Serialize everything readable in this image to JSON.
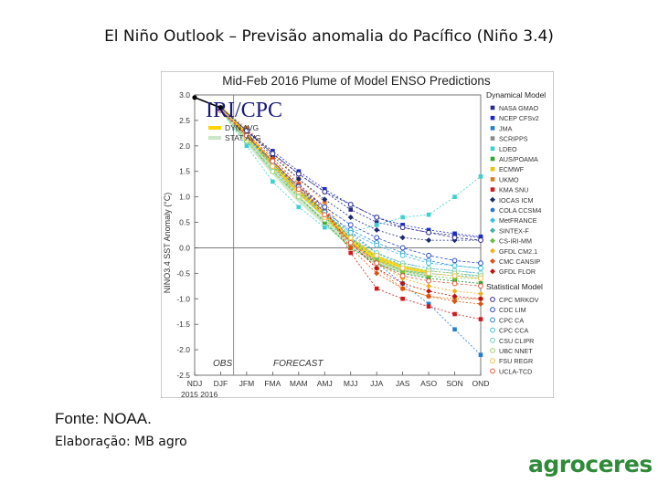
{
  "slide": {
    "title": "El Niño Outlook – Previsão anomalia do Pacífico (Niño 3.4)",
    "source": "Fonte: NOAA.",
    "credit": "Elaboração: MB agro",
    "brand": "agroceres"
  },
  "chart_data": {
    "type": "line",
    "title": "Mid-Feb 2016 Plume of Model ENSO Predictions",
    "watermark": "IRI/CPC",
    "ylabel": "NINO3.4 SST Anomaly (°C)",
    "xlabel": "",
    "year_label": "2015  2016",
    "categories": [
      "NDJ",
      "DJF",
      "JFM",
      "FMA",
      "MAM",
      "AMJ",
      "MJJ",
      "JJA",
      "JAS",
      "ASO",
      "SON",
      "OND"
    ],
    "ylim": [
      -2.5,
      3.0
    ],
    "yticks": [
      -2.5,
      -2.0,
      -1.5,
      -1.0,
      -0.5,
      0.0,
      0.5,
      1.0,
      1.5,
      2.0,
      2.5,
      3.0
    ],
    "ytick_labels": [
      "-2.5",
      "-2.0",
      "-1.5",
      "-1.0",
      "-0.5",
      "0.0",
      "0.5",
      "1.0",
      "1.5",
      "2.0",
      "2.5",
      "3.0"
    ],
    "obs_label": "OBS",
    "forecast_label": "FORECAST",
    "observed": [
      2.95,
      2.75
    ],
    "averages": [
      {
        "name": "DYN AVG",
        "color": "#ffd400",
        "values": [
          null,
          2.75,
          2.2,
          1.65,
          1.1,
          0.65,
          0.15,
          -0.2,
          -0.4,
          -0.5,
          null,
          null
        ]
      },
      {
        "name": "STAT AVG",
        "color": "#c9e6c9",
        "values": [
          null,
          2.75,
          2.1,
          1.5,
          0.95,
          0.5,
          0.05,
          -0.3,
          -0.45,
          -0.55,
          null,
          null
        ]
      }
    ],
    "legend_dynamical_title": "Dynamical Model",
    "legend_statistical_title": "Statistical Model",
    "series": [
      {
        "name": "NASA GMAO",
        "group": "dyn",
        "color": "#2a2a8a",
        "marker": "square",
        "values": [
          null,
          2.75,
          2.3,
          1.85,
          1.45,
          1.1,
          0.75,
          0.5,
          0.4,
          0.3,
          0.25,
          0.2
        ]
      },
      {
        "name": "NCEP CFSv2",
        "group": "dyn",
        "color": "#1a2ad0",
        "marker": "square",
        "values": [
          null,
          2.75,
          2.3,
          1.9,
          1.5,
          1.15,
          0.85,
          0.6,
          0.45,
          0.35,
          0.28,
          0.22
        ]
      },
      {
        "name": "JMA",
        "group": "dyn",
        "color": "#1e7fd8",
        "marker": "square",
        "values": [
          null,
          2.7,
          2.2,
          1.7,
          1.2,
          0.7,
          0.2,
          -0.3,
          -0.7,
          -1.1,
          -1.6,
          -2.1
        ]
      },
      {
        "name": "SCRIPPS",
        "group": "dyn",
        "color": "#8a8a8a",
        "marker": "square",
        "values": [
          null,
          2.7,
          2.2,
          1.6,
          1.0,
          0.5,
          0.0,
          -0.3,
          -0.5,
          -0.6,
          -0.65,
          -0.7
        ]
      },
      {
        "name": "LDEO",
        "group": "dyn",
        "color": "#3ad0d0",
        "marker": "square",
        "values": [
          null,
          2.7,
          2.0,
          1.3,
          0.8,
          0.4,
          0.3,
          0.45,
          0.6,
          0.65,
          1.0,
          1.4
        ]
      },
      {
        "name": "AUS/POAMA",
        "group": "dyn",
        "color": "#2fa82f",
        "marker": "square",
        "values": [
          null,
          2.7,
          2.1,
          1.5,
          1.0,
          0.5,
          0.0,
          -0.3,
          -0.5,
          -0.6,
          -0.65,
          -0.7
        ]
      },
      {
        "name": "ECMWF",
        "group": "dyn",
        "color": "#f2c000",
        "marker": "square",
        "values": [
          null,
          2.75,
          2.2,
          1.7,
          1.2,
          0.7,
          0.1,
          -0.25,
          -0.45,
          -0.5,
          -0.55,
          -0.6
        ]
      },
      {
        "name": "UKMO",
        "group": "dyn",
        "color": "#e07a1a",
        "marker": "square",
        "values": [
          null,
          2.75,
          2.35,
          1.85,
          1.35,
          0.9,
          0.1,
          -0.4,
          -0.8,
          -0.95,
          -1.0,
          -1.0
        ]
      },
      {
        "name": "KMA SNU",
        "group": "dyn",
        "color": "#d01a1a",
        "marker": "square",
        "values": [
          null,
          2.7,
          2.25,
          1.75,
          1.25,
          0.8,
          -0.1,
          -0.8,
          -1.0,
          -1.15,
          -1.3,
          -1.4
        ]
      },
      {
        "name": "IOCAS ICM",
        "group": "dyn",
        "color": "#1a2a70",
        "marker": "diamond",
        "values": [
          null,
          2.75,
          2.3,
          1.8,
          1.35,
          0.95,
          0.6,
          0.35,
          0.2,
          0.15,
          0.15,
          0.15
        ]
      },
      {
        "name": "COLA CCSM4",
        "group": "dyn",
        "color": "#2a7acc",
        "marker": "circle",
        "values": [
          null,
          2.7,
          2.2,
          1.7,
          1.2,
          0.75,
          0.3,
          -0.1,
          -0.3,
          -0.4,
          -0.45,
          -0.5
        ]
      },
      {
        "name": "MetFRANCE",
        "group": "dyn",
        "color": "#3ac0e0",
        "marker": "diamond",
        "values": [
          null,
          2.7,
          2.2,
          1.6,
          1.1,
          0.6,
          0.2,
          -0.2,
          -0.45,
          -0.5,
          -0.55,
          -0.55
        ]
      },
      {
        "name": "SINTEX-F",
        "group": "dyn",
        "color": "#40b0b0",
        "marker": "diamond",
        "values": [
          null,
          2.7,
          2.2,
          1.65,
          1.15,
          0.7,
          0.25,
          -0.1,
          -0.35,
          -0.45,
          -0.5,
          -0.55
        ]
      },
      {
        "name": "CS-IRI-MM",
        "group": "dyn",
        "color": "#6ac040",
        "marker": "diamond",
        "values": [
          null,
          2.7,
          2.15,
          1.6,
          1.1,
          0.6,
          0.1,
          -0.25,
          -0.45,
          -0.55,
          -0.6,
          -0.6
        ]
      },
      {
        "name": "GFDL CM2.1",
        "group": "dyn",
        "color": "#f0b020",
        "marker": "diamond",
        "values": [
          null,
          2.7,
          2.2,
          1.7,
          1.2,
          0.7,
          0.15,
          -0.3,
          -0.6,
          -0.75,
          -0.85,
          -0.9
        ]
      },
      {
        "name": "CMC CANSIP",
        "group": "dyn",
        "color": "#e05010",
        "marker": "diamond",
        "values": [
          null,
          2.7,
          2.25,
          1.75,
          1.25,
          0.75,
          0.0,
          -0.5,
          -0.8,
          -0.95,
          -1.05,
          -1.1
        ]
      },
      {
        "name": "GFDL FLOR",
        "group": "dyn",
        "color": "#c01010",
        "marker": "diamond",
        "values": [
          null,
          2.7,
          2.2,
          1.7,
          1.2,
          0.7,
          0.1,
          -0.4,
          -0.7,
          -0.85,
          -0.95,
          -1.0
        ]
      },
      {
        "name": "CPC MRKOV",
        "group": "stat",
        "color": "#2a2a8a",
        "marker": "ocircle",
        "values": [
          null,
          2.75,
          2.3,
          1.85,
          1.45,
          1.1,
          0.85,
          0.6,
          0.4,
          0.3,
          0.2,
          0.15
        ]
      },
      {
        "name": "CDC LIM",
        "group": "stat",
        "color": "#2a4acc",
        "marker": "ocircle",
        "values": [
          null,
          2.7,
          2.2,
          1.7,
          1.2,
          0.8,
          0.45,
          0.2,
          0.0,
          -0.15,
          -0.25,
          -0.3
        ]
      },
      {
        "name": "CPC CA",
        "group": "stat",
        "color": "#2a8ad8",
        "marker": "ocircle",
        "values": [
          null,
          2.7,
          2.2,
          1.65,
          1.15,
          0.7,
          0.35,
          0.1,
          -0.1,
          -0.25,
          -0.35,
          -0.4
        ]
      },
      {
        "name": "CPC CCA",
        "group": "stat",
        "color": "#40c0e0",
        "marker": "ocircle",
        "values": [
          null,
          2.7,
          2.15,
          1.6,
          1.1,
          0.65,
          0.3,
          0.05,
          -0.15,
          -0.3,
          -0.35,
          -0.4
        ]
      },
      {
        "name": "CSU CLIPR",
        "group": "stat",
        "color": "#70d0c0",
        "marker": "ocircle",
        "values": [
          null,
          2.7,
          2.1,
          1.55,
          1.05,
          0.6,
          0.2,
          -0.1,
          -0.3,
          -0.4,
          -0.45,
          -0.5
        ]
      },
      {
        "name": "UBC NNET",
        "group": "stat",
        "color": "#a0d070",
        "marker": "ocircle",
        "values": [
          null,
          2.7,
          2.1,
          1.5,
          1.0,
          0.55,
          0.15,
          -0.15,
          -0.35,
          -0.45,
          -0.5,
          -0.55
        ]
      },
      {
        "name": "FSU REGR",
        "group": "stat",
        "color": "#f0c050",
        "marker": "ocircle",
        "values": [
          null,
          2.7,
          2.15,
          1.6,
          1.1,
          0.6,
          0.2,
          -0.15,
          -0.4,
          -0.5,
          -0.55,
          -0.6
        ]
      },
      {
        "name": "UCLA-TCD",
        "group": "stat",
        "color": "#e06040",
        "marker": "ocircle",
        "values": [
          null,
          2.7,
          2.2,
          1.7,
          1.15,
          0.65,
          0.1,
          -0.3,
          -0.55,
          -0.65,
          -0.7,
          -0.75
        ]
      }
    ]
  }
}
